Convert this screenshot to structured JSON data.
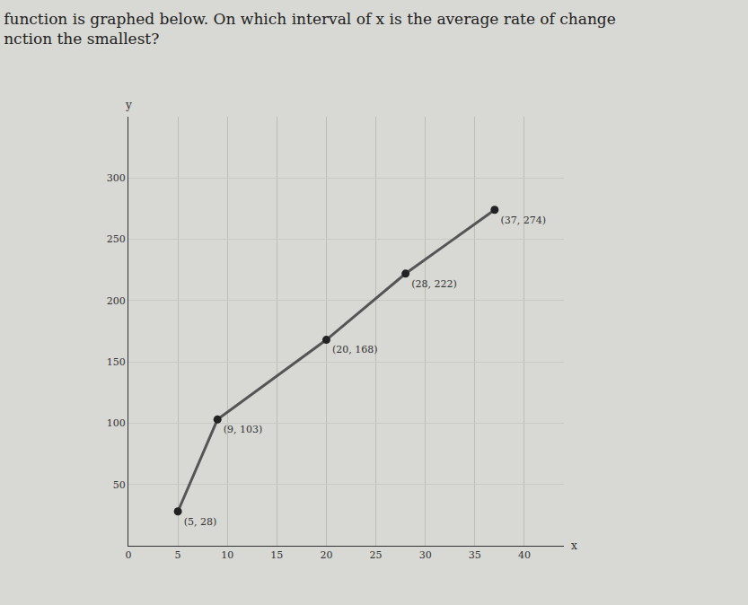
{
  "chart_data": {
    "type": "line",
    "title": [
      "function is graphed below. On which interval of x is the average rate of change",
      "nction the smallest?"
    ],
    "xlabel": "x",
    "ylabel": "y",
    "x": [
      5,
      9,
      20,
      28,
      37
    ],
    "values": [
      28,
      103,
      168,
      222,
      274
    ],
    "value_labels": [
      "(5, 28)",
      "(9, 103)",
      "(20, 168)",
      "(28, 222)",
      "(37, 274)"
    ],
    "data_labels": true,
    "xlim": [
      0,
      44
    ],
    "ylim": [
      0,
      350
    ],
    "xticks": [
      0,
      5,
      10,
      15,
      20,
      25,
      30,
      35,
      40
    ],
    "yticks": [
      50,
      100,
      150,
      200,
      250,
      300
    ],
    "grid": true,
    "color": "#555555",
    "marker": "circle"
  }
}
